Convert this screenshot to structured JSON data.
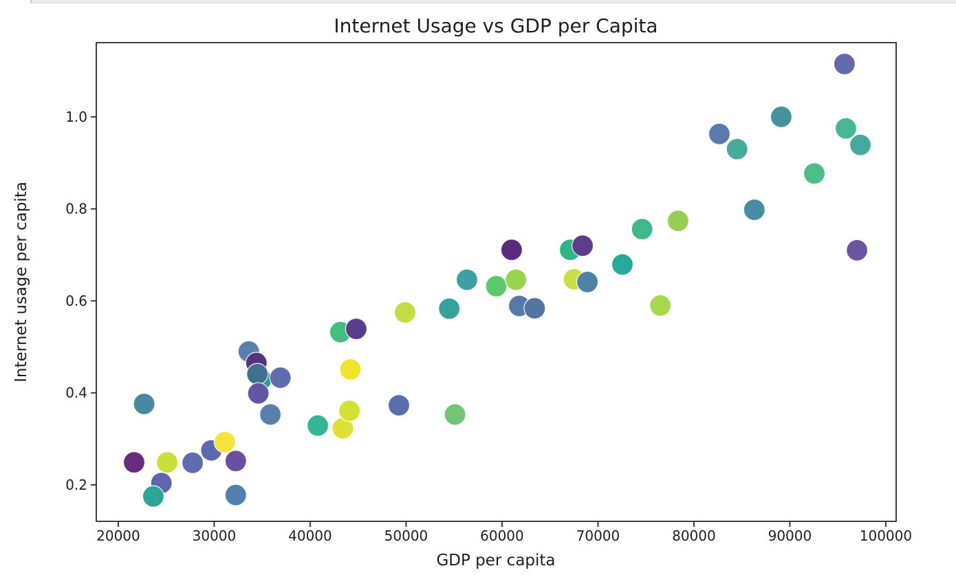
{
  "notebook": {
    "cell_divider_present": true
  },
  "chart_data": {
    "type": "scatter",
    "title": "Internet Usage vs GDP per Capita",
    "xlabel": "GDP per capita",
    "ylabel": "Internet usage per capita",
    "grid": false,
    "legend": "none",
    "xlim": [
      17710,
      101080
    ],
    "ylim": [
      0.1207,
      1.1614
    ],
    "x_ticks": [
      20000,
      30000,
      40000,
      50000,
      60000,
      70000,
      80000,
      90000,
      100000
    ],
    "x_tick_labels": [
      "20000",
      "30000",
      "40000",
      "50000",
      "60000",
      "70000",
      "80000",
      "90000",
      "100000"
    ],
    "y_ticks": [
      0.2,
      0.4,
      0.6,
      0.8,
      1.0
    ],
    "y_tick_labels": [
      "0.2",
      "0.4",
      "0.6",
      "0.8",
      "1.0"
    ],
    "marker_radius_px": 15.5,
    "points": [
      {
        "x": 21650,
        "y": 0.249,
        "color": "#692d80"
      },
      {
        "x": 25100,
        "y": 0.249,
        "color": "#c9e03c"
      },
      {
        "x": 27750,
        "y": 0.248,
        "color": "#5f6cb0"
      },
      {
        "x": 29700,
        "y": 0.275,
        "color": "#5e68ac"
      },
      {
        "x": 24500,
        "y": 0.204,
        "color": "#5d66ae"
      },
      {
        "x": 23650,
        "y": 0.175,
        "color": "#2aa596"
      },
      {
        "x": 22700,
        "y": 0.376,
        "color": "#4888a0"
      },
      {
        "x": 31100,
        "y": 0.293,
        "color": "#f2e33d"
      },
      {
        "x": 32250,
        "y": 0.252,
        "color": "#6a4fa2"
      },
      {
        "x": 32250,
        "y": 0.178,
        "color": "#527fae"
      },
      {
        "x": 33600,
        "y": 0.49,
        "color": "#5a7fae"
      },
      {
        "x": 34400,
        "y": 0.465,
        "color": "#53357e"
      },
      {
        "x": 34900,
        "y": 0.429,
        "color": "#2f9c8e"
      },
      {
        "x": 34500,
        "y": 0.441,
        "color": "#41718f"
      },
      {
        "x": 34600,
        "y": 0.399,
        "color": "#6156a3"
      },
      {
        "x": 35850,
        "y": 0.353,
        "color": "#5a7fae"
      },
      {
        "x": 36900,
        "y": 0.433,
        "color": "#5f6cae"
      },
      {
        "x": 40800,
        "y": 0.329,
        "color": "#35b796"
      },
      {
        "x": 43400,
        "y": 0.323,
        "color": "#dde135"
      },
      {
        "x": 44100,
        "y": 0.361,
        "color": "#d3e135"
      },
      {
        "x": 43150,
        "y": 0.532,
        "color": "#44bd80"
      },
      {
        "x": 44800,
        "y": 0.539,
        "color": "#5a3d8c"
      },
      {
        "x": 44200,
        "y": 0.451,
        "color": "#f4e32e"
      },
      {
        "x": 49250,
        "y": 0.373,
        "color": "#5a6cae"
      },
      {
        "x": 49900,
        "y": 0.575,
        "color": "#c0dd44"
      },
      {
        "x": 55100,
        "y": 0.353,
        "color": "#74c476"
      },
      {
        "x": 54500,
        "y": 0.583,
        "color": "#35a39c"
      },
      {
        "x": 56350,
        "y": 0.646,
        "color": "#3d9fa4"
      },
      {
        "x": 59400,
        "y": 0.632,
        "color": "#5cc96d"
      },
      {
        "x": 61450,
        "y": 0.646,
        "color": "#9ad44f"
      },
      {
        "x": 61000,
        "y": 0.711,
        "color": "#5b2c7e"
      },
      {
        "x": 61800,
        "y": 0.589,
        "color": "#5379a8"
      },
      {
        "x": 63400,
        "y": 0.584,
        "color": "#50769f"
      },
      {
        "x": 67100,
        "y": 0.711,
        "color": "#2db783"
      },
      {
        "x": 68400,
        "y": 0.72,
        "color": "#5e3d8f"
      },
      {
        "x": 67500,
        "y": 0.647,
        "color": "#c8e046"
      },
      {
        "x": 68900,
        "y": 0.641,
        "color": "#4e81a8"
      },
      {
        "x": 72550,
        "y": 0.679,
        "color": "#2aa899"
      },
      {
        "x": 74600,
        "y": 0.756,
        "color": "#41b88a"
      },
      {
        "x": 78350,
        "y": 0.774,
        "color": "#96cf52"
      },
      {
        "x": 76500,
        "y": 0.59,
        "color": "#a6d84e"
      },
      {
        "x": 86300,
        "y": 0.798,
        "color": "#4a8ba4"
      },
      {
        "x": 82650,
        "y": 0.963,
        "color": "#5b79ae"
      },
      {
        "x": 84500,
        "y": 0.93,
        "color": "#47ab9c"
      },
      {
        "x": 89100,
        "y": 1.0,
        "color": "#48919e"
      },
      {
        "x": 92550,
        "y": 0.877,
        "color": "#4dbd8a"
      },
      {
        "x": 95850,
        "y": 0.975,
        "color": "#48b693"
      },
      {
        "x": 97350,
        "y": 0.939,
        "color": "#45a9a0"
      },
      {
        "x": 95700,
        "y": 1.115,
        "color": "#636aab"
      },
      {
        "x": 97000,
        "y": 0.71,
        "color": "#6a55a0"
      }
    ]
  }
}
